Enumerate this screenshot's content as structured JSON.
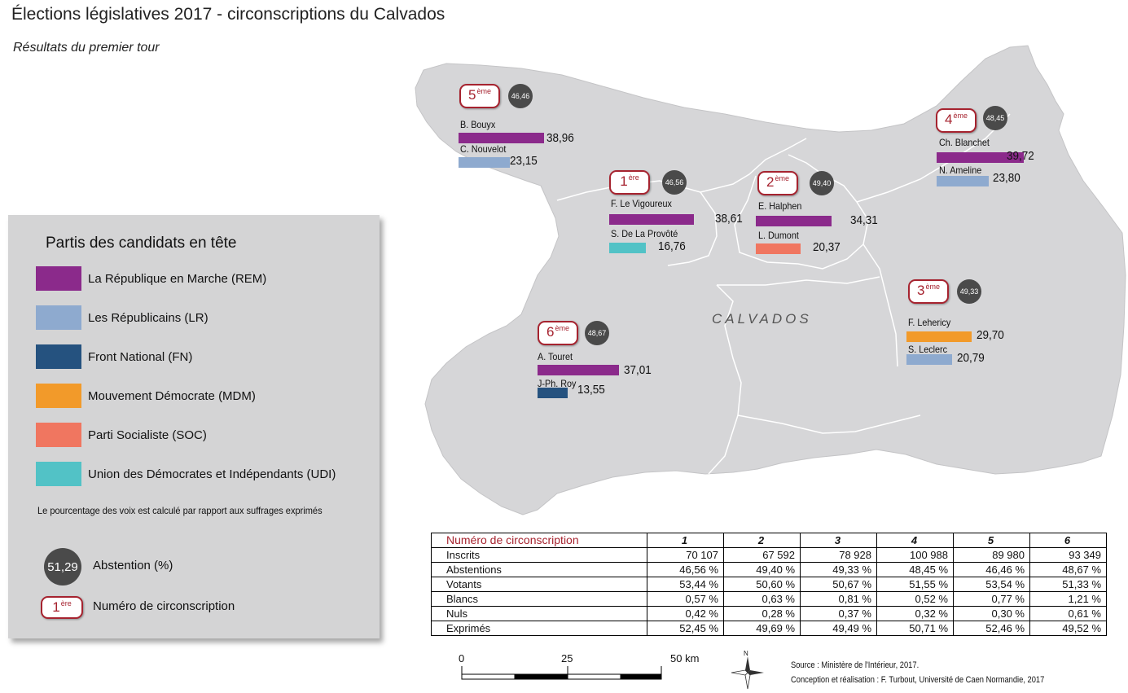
{
  "title": "Élections législatives 2017 - circonscriptions du Calvados",
  "subtitle": "Résultats du premier tour",
  "map_label": "CALVADOS",
  "colors": {
    "REM": "#8b2a8b",
    "LR": "#8eaacf",
    "FN": "#25527f",
    "MDM": "#f29a2a",
    "SOC": "#f07660",
    "UDI": "#52c2c6",
    "land": "#d6d6d8",
    "badge": "#a6232f",
    "abstention": "#4a4a4a"
  },
  "legend": {
    "title": "Partis des candidats en tête",
    "parties": [
      {
        "code": "REM",
        "label": "La République en Marche (REM)"
      },
      {
        "code": "LR",
        "label": "Les Républicains (LR)"
      },
      {
        "code": "FN",
        "label": "Front National (FN)"
      },
      {
        "code": "MDM",
        "label": "Mouvement Démocrate (MDM)"
      },
      {
        "code": "SOC",
        "label": "Parti Socialiste (SOC)"
      },
      {
        "code": "UDI",
        "label": "Union des Démocrates et Indépendants (UDI)"
      }
    ],
    "note": "Le pourcentage des voix est calculé par rapport aux suffrages exprimés",
    "abstention_example": "51,29",
    "abstention_label": "Abstention (%)",
    "circ_example_num": "1",
    "circ_example_sup": "ère",
    "circ_label": "Numéro de circonscription"
  },
  "districts": [
    {
      "id": "1",
      "num": "1",
      "sup": "ère",
      "abstention": "46,56",
      "candidates": [
        {
          "name": "F. Le Vigoureux",
          "party": "REM",
          "value": "38,61",
          "pct": 38.61
        },
        {
          "name": "S. De La Provôté",
          "party": "UDI",
          "value": "16,76",
          "pct": 16.76
        }
      ]
    },
    {
      "id": "2",
      "num": "2",
      "sup": "ème",
      "abstention": "49,40",
      "candidates": [
        {
          "name": "E. Halphen",
          "party": "REM",
          "value": "34,31",
          "pct": 34.31
        },
        {
          "name": "L. Dumont",
          "party": "SOC",
          "value": "20,37",
          "pct": 20.37
        }
      ]
    },
    {
      "id": "3",
      "num": "3",
      "sup": "ème",
      "abstention": "49,33",
      "candidates": [
        {
          "name": "F. Lehericy",
          "party": "MDM",
          "value": "29,70",
          "pct": 29.7
        },
        {
          "name": "S. Leclerc",
          "party": "LR",
          "value": "20,79",
          "pct": 20.79
        }
      ]
    },
    {
      "id": "4",
      "num": "4",
      "sup": "ème",
      "abstention": "48,45",
      "candidates": [
        {
          "name": "Ch. Blanchet",
          "party": "REM",
          "value": "39,72",
          "pct": 39.72
        },
        {
          "name": "N. Ameline",
          "party": "LR",
          "value": "23,80",
          "pct": 23.8
        }
      ]
    },
    {
      "id": "5",
      "num": "5",
      "sup": "ème",
      "abstention": "46,46",
      "candidates": [
        {
          "name": "B. Bouyx",
          "party": "REM",
          "value": "38,96",
          "pct": 38.96
        },
        {
          "name": "C. Nouvelot",
          "party": "LR",
          "value": "23,15",
          "pct": 23.15
        }
      ]
    },
    {
      "id": "6",
      "num": "6",
      "sup": "ème",
      "abstention": "48,67",
      "candidates": [
        {
          "name": "A. Touret",
          "party": "REM",
          "value": "37,01",
          "pct": 37.01
        },
        {
          "name": "J-Ph. Roy",
          "party": "FN",
          "value": "13,55",
          "pct": 13.55
        }
      ]
    }
  ],
  "table": {
    "header_label": "Numéro de circonscription",
    "columns": [
      "1",
      "2",
      "3",
      "4",
      "5",
      "6"
    ],
    "rows": [
      {
        "label": "Inscrits",
        "values": [
          "70 107",
          "67 592",
          "78 928",
          "100 988",
          "89 980",
          "93 349"
        ]
      },
      {
        "label": "Abstentions",
        "values": [
          "46,56 %",
          "49,40 %",
          "49,33 %",
          "48,45 %",
          "46,46 %",
          "48,67 %"
        ]
      },
      {
        "label": "Votants",
        "values": [
          "53,44 %",
          "50,60 %",
          "50,67 %",
          "51,55 %",
          "53,54 %",
          "51,33 %"
        ]
      },
      {
        "label": "Blancs",
        "values": [
          "0,57 %",
          "0,63 %",
          "0,81 %",
          "0,52 %",
          "0,77 %",
          "1,21 %"
        ]
      },
      {
        "label": "Nuls",
        "values": [
          "0,42 %",
          "0,28 %",
          "0,37 %",
          "0,32 %",
          "0,30 %",
          "0,61 %"
        ]
      },
      {
        "label": "Exprimés",
        "values": [
          "52,45 %",
          "49,69 %",
          "49,49 %",
          "50,71 %",
          "52,46 %",
          "49,52 %"
        ]
      }
    ]
  },
  "scale_bar": {
    "labels": [
      "0",
      "25",
      "50 km"
    ]
  },
  "compass": {
    "north_label": "N"
  },
  "source": {
    "line1": "Source : Ministère de l'Intérieur, 2017.",
    "line2": "Conception et réalisation : F. Turbout, Université de Caen Normandie, 2017"
  }
}
